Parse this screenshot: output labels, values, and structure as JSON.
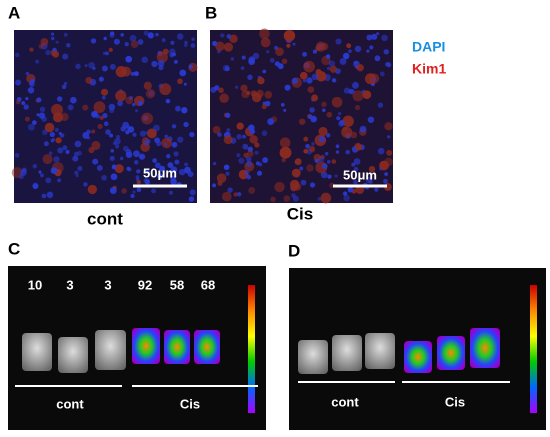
{
  "panels": [
    {
      "label": "A",
      "scale_bar": "50μm",
      "caption": "cont"
    },
    {
      "label": "B",
      "scale_bar": "50μm",
      "caption": "Cis"
    },
    {
      "label": "C",
      "values": [
        "10",
        "3",
        "3",
        "92",
        "58",
        "68"
      ],
      "groups": [
        "cont",
        "Cis"
      ]
    },
    {
      "label": "D",
      "groups": [
        "cont",
        "Cis"
      ]
    }
  ],
  "legend": [
    "DAPI",
    "Kim1"
  ]
}
